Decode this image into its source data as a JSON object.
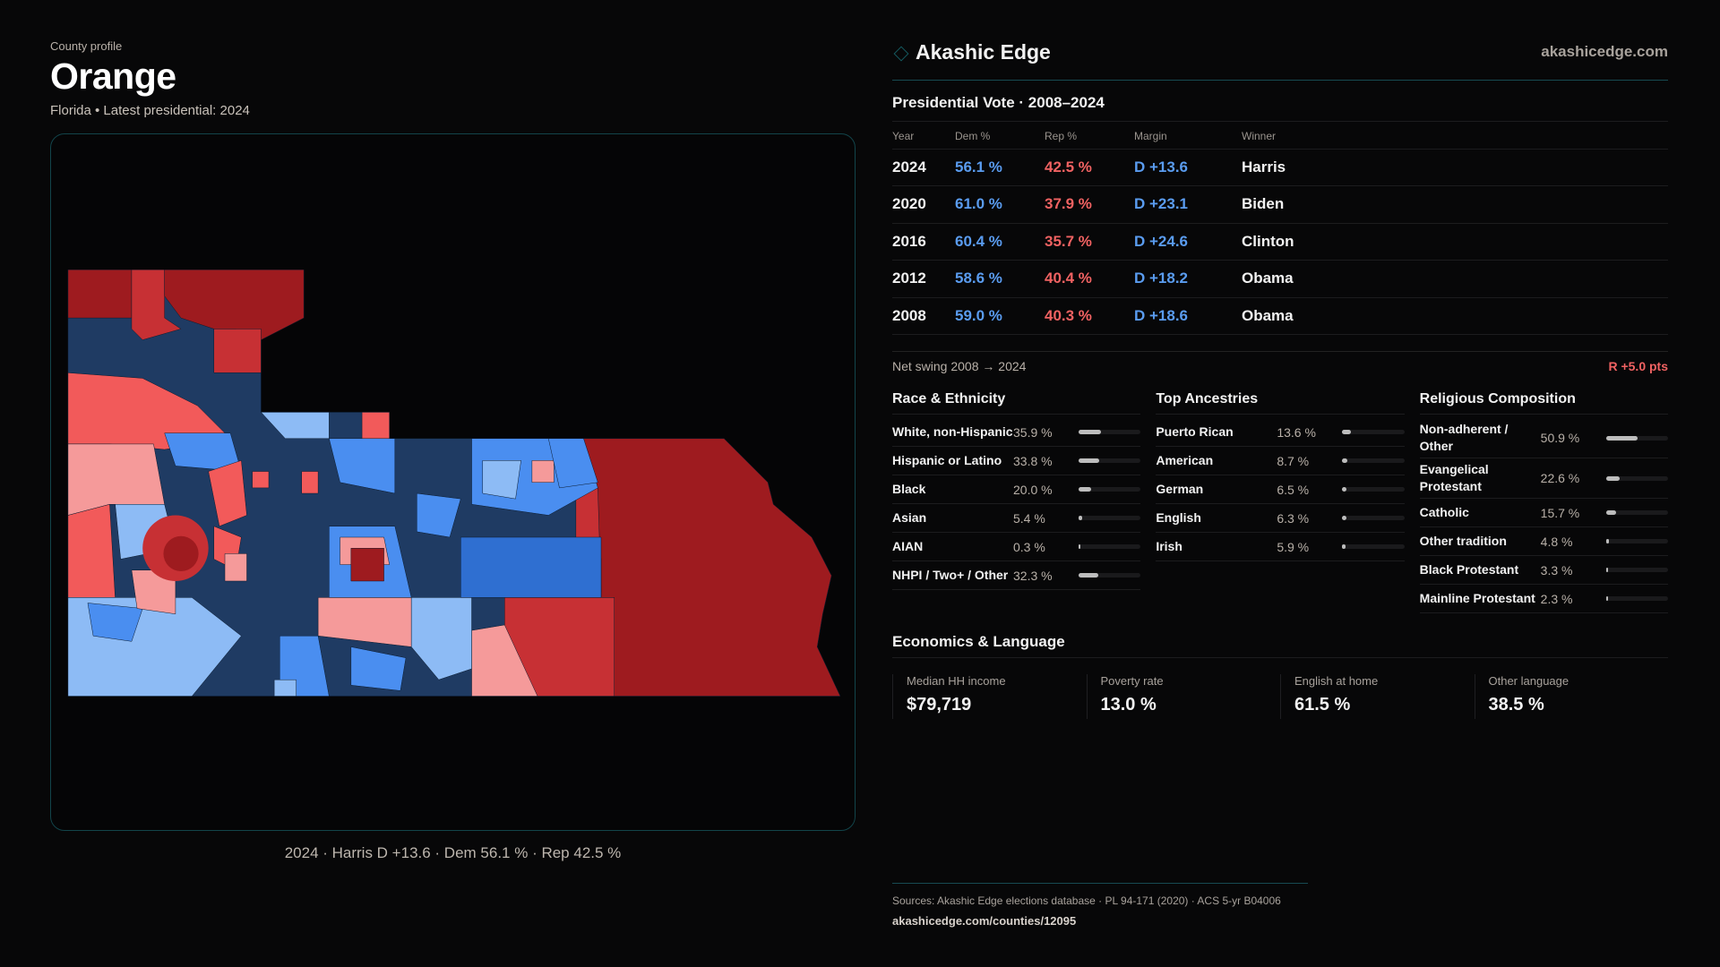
{
  "header": {
    "kicker": "County profile",
    "county": "Orange",
    "subtitle": "Florida • Latest presidential: 2024"
  },
  "map": {
    "caption": "2024 · Harris D +13.6 · Dem 56.1 % · Rep 42.5 %",
    "colors": {
      "safe_r": "#9e1b1f",
      "likely_r": "#c73034",
      "lean_r": "#f25a5a",
      "tilt_r": "#f59a9a",
      "safe_d": "#1f3b63",
      "likely_d": "#2f6fd1",
      "lean_d": "#4a8ef0",
      "tilt_d": "#8dbbf5"
    }
  },
  "brand": {
    "name": "Akashic Edge",
    "site": "akashicedge.com",
    "icon": "diamond-icon"
  },
  "vote": {
    "title": "Presidential Vote · 2008–2024",
    "headers": [
      "Year",
      "Dem %",
      "Rep %",
      "Margin",
      "Winner"
    ],
    "rows": [
      [
        "2024",
        "56.1 %",
        "42.5 %",
        "D +13.6",
        "Harris"
      ],
      [
        "2020",
        "61.0 %",
        "37.9 %",
        "D +23.1",
        "Biden"
      ],
      [
        "2016",
        "60.4 %",
        "35.7 %",
        "D +24.6",
        "Clinton"
      ],
      [
        "2012",
        "58.6 %",
        "40.4 %",
        "D +18.2",
        "Obama"
      ],
      [
        "2008",
        "59.0 %",
        "40.3 %",
        "D +18.6",
        "Obama"
      ]
    ],
    "swing_label": "Net swing 2008 → 2024",
    "swing_value": "R +5.0 pts"
  },
  "sections": [
    {
      "title": "Race & Ethnicity",
      "items": [
        {
          "label": "White, non-Hispanic",
          "pct": "35.9 %",
          "value": 35.9
        },
        {
          "label": "Hispanic or Latino",
          "pct": "33.8 %",
          "value": 33.8
        },
        {
          "label": "Black",
          "pct": "20.0 %",
          "value": 20.0
        },
        {
          "label": "Asian",
          "pct": "5.4 %",
          "value": 5.4
        },
        {
          "label": "AIAN",
          "pct": "0.3 %",
          "value": 0.3
        },
        {
          "label": "NHPI / Two+ / Other",
          "pct": "32.3 %",
          "value": 32.3
        }
      ]
    },
    {
      "title": "Top Ancestries",
      "items": [
        {
          "label": "Puerto Rican",
          "pct": "13.6 %",
          "value": 13.6
        },
        {
          "label": "American",
          "pct": "8.7 %",
          "value": 8.7
        },
        {
          "label": "German",
          "pct": "6.5 %",
          "value": 6.5
        },
        {
          "label": "English",
          "pct": "6.3 %",
          "value": 6.3
        },
        {
          "label": "Irish",
          "pct": "5.9 %",
          "value": 5.9
        }
      ]
    },
    {
      "title": "Religious Composition",
      "items": [
        {
          "label": "Non-adherent / Other",
          "pct": "50.9 %",
          "value": 50.9
        },
        {
          "label": "Evangelical Protestant",
          "pct": "22.6 %",
          "value": 22.6
        },
        {
          "label": "Catholic",
          "pct": "15.7 %",
          "value": 15.7
        },
        {
          "label": "Other tradition",
          "pct": "4.8 %",
          "value": 4.8
        },
        {
          "label": "Black Protestant",
          "pct": "3.3 %",
          "value": 3.3
        },
        {
          "label": "Mainline Protestant",
          "pct": "2.3 %",
          "value": 2.3
        }
      ]
    }
  ],
  "econ": {
    "title": "Economics & Language",
    "stats": [
      {
        "label": "Median HH income",
        "value": "$79,719"
      },
      {
        "label": "Poverty rate",
        "value": "13.0 %"
      },
      {
        "label": "English at home",
        "value": "61.5 %"
      },
      {
        "label": "Other language",
        "value": "38.5 %"
      }
    ]
  },
  "footer": {
    "sources": "Sources: Akashic Edge elections database · PL 94-171 (2020) · ACS 5-yr B04006",
    "url": "akashicedge.com/counties/12095"
  }
}
